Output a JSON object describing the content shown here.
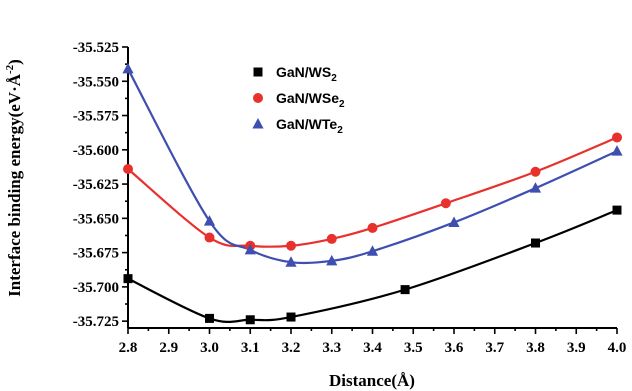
{
  "chart_data": {
    "type": "line",
    "xlabel": "Distance(Å)",
    "ylabel": {
      "main": "Interface binding energy(eV·Å",
      "exp": "-2",
      "close": ")"
    },
    "xlim": [
      2.8,
      4.0
    ],
    "ylim": [
      -35.73,
      -35.525
    ],
    "xticks": [
      "2.8",
      "2.9",
      "3.0",
      "3.1",
      "3.2",
      "3.3",
      "3.4",
      "3.5",
      "3.6",
      "3.7",
      "3.8",
      "3.9",
      "4.0"
    ],
    "yticks": [
      "-35.525",
      "-35.550",
      "-35.575",
      "-35.600",
      "-35.625",
      "-35.650",
      "-35.675",
      "-35.700",
      "-35.725"
    ],
    "legend_position": "top-center",
    "grid": false,
    "series": [
      {
        "name": {
          "base": "GaN/WS",
          "sub": "2"
        },
        "color": "#000000",
        "marker": "square",
        "x": [
          2.8,
          3.0,
          3.1,
          3.2,
          3.48,
          3.8,
          4.0
        ],
        "y": [
          -35.694,
          -35.723,
          -35.724,
          -35.722,
          -35.702,
          -35.668,
          -35.644
        ]
      },
      {
        "name": {
          "base": "GaN/WSe",
          "sub": "2"
        },
        "color": "#e8312c",
        "marker": "circle",
        "x": [
          2.8,
          3.0,
          3.1,
          3.2,
          3.3,
          3.4,
          3.58,
          3.8,
          4.0
        ],
        "y": [
          -35.614,
          -35.664,
          -35.67,
          -35.67,
          -35.665,
          -35.657,
          -35.639,
          -35.616,
          -35.591
        ]
      },
      {
        "name": {
          "base": "GaN/WTe",
          "sub": "2"
        },
        "color": "#3f4fb0",
        "marker": "triangle",
        "x": [
          2.8,
          3.0,
          3.1,
          3.2,
          3.3,
          3.4,
          3.6,
          3.8,
          4.0
        ],
        "y": [
          -35.541,
          -35.652,
          -35.673,
          -35.682,
          -35.681,
          -35.674,
          -35.653,
          -35.628,
          -35.601
        ]
      }
    ]
  }
}
